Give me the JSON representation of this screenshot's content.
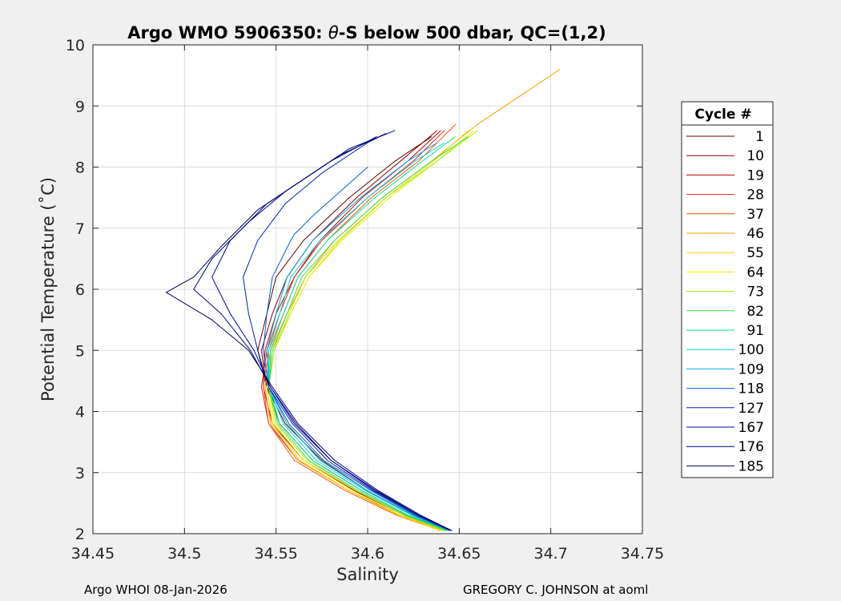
{
  "chart_data": {
    "type": "line",
    "title_prefix": "Argo WMO 5906350: ",
    "title_theta": "θ",
    "title_suffix": "-S below 500 dbar,  QC=(1,2)",
    "xlabel": "Salinity",
    "ylabel": "Potential Temperature (˚C)",
    "xlim": [
      34.45,
      34.75
    ],
    "ylim": [
      2,
      10
    ],
    "xticks": [
      "34.45",
      "34.5",
      "34.55",
      "34.6",
      "34.65",
      "34.7",
      "34.75"
    ],
    "yticks": [
      "2",
      "3",
      "4",
      "5",
      "6",
      "7",
      "8",
      "9",
      "10"
    ],
    "grid": true,
    "legend_title": "Cycle #",
    "legend_position": "right",
    "series": [
      {
        "name": "1",
        "color": "#5a0000",
        "points": [
          [
            34.645,
            2.05
          ],
          [
            34.625,
            2.3
          ],
          [
            34.6,
            2.7
          ],
          [
            34.575,
            3.2
          ],
          [
            34.555,
            3.8
          ],
          [
            34.545,
            4.4
          ],
          [
            34.54,
            5.0
          ],
          [
            34.545,
            5.6
          ],
          [
            34.55,
            6.2
          ],
          [
            34.565,
            6.8
          ],
          [
            34.59,
            7.5
          ],
          [
            34.615,
            8.1
          ],
          [
            34.635,
            8.5
          ]
        ]
      },
      {
        "name": "10",
        "color": "#8a0000",
        "points": [
          [
            34.645,
            2.05
          ],
          [
            34.622,
            2.3
          ],
          [
            34.597,
            2.7
          ],
          [
            34.57,
            3.2
          ],
          [
            34.552,
            3.8
          ],
          [
            34.545,
            4.4
          ],
          [
            34.542,
            5.0
          ],
          [
            34.548,
            5.6
          ],
          [
            34.556,
            6.2
          ],
          [
            34.57,
            6.8
          ],
          [
            34.594,
            7.5
          ],
          [
            34.618,
            8.1
          ],
          [
            34.638,
            8.6
          ]
        ]
      },
      {
        "name": "19",
        "color": "#c00000",
        "points": [
          [
            34.643,
            2.05
          ],
          [
            34.62,
            2.3
          ],
          [
            34.593,
            2.7
          ],
          [
            34.565,
            3.2
          ],
          [
            34.548,
            3.8
          ],
          [
            34.543,
            4.4
          ],
          [
            34.544,
            5.0
          ],
          [
            34.55,
            5.6
          ],
          [
            34.56,
            6.2
          ],
          [
            34.574,
            6.8
          ],
          [
            34.597,
            7.5
          ],
          [
            34.622,
            8.1
          ],
          [
            34.64,
            8.6
          ]
        ]
      },
      {
        "name": "28",
        "color": "#e02020",
        "points": [
          [
            34.642,
            2.05
          ],
          [
            34.618,
            2.3
          ],
          [
            34.59,
            2.7
          ],
          [
            34.562,
            3.2
          ],
          [
            34.546,
            3.8
          ],
          [
            34.542,
            4.4
          ],
          [
            34.545,
            5.0
          ],
          [
            34.552,
            5.6
          ],
          [
            34.56,
            6.2
          ],
          [
            34.575,
            6.8
          ],
          [
            34.6,
            7.5
          ],
          [
            34.625,
            8.1
          ],
          [
            34.642,
            8.6
          ]
        ]
      },
      {
        "name": "37",
        "color": "#ff5500",
        "points": [
          [
            34.64,
            2.05
          ],
          [
            34.616,
            2.3
          ],
          [
            34.588,
            2.7
          ],
          [
            34.56,
            3.2
          ],
          [
            34.546,
            3.8
          ],
          [
            34.543,
            4.4
          ],
          [
            34.546,
            5.0
          ],
          [
            34.554,
            5.6
          ],
          [
            34.562,
            6.2
          ],
          [
            34.578,
            6.8
          ],
          [
            34.602,
            7.5
          ],
          [
            34.628,
            8.1
          ],
          [
            34.648,
            8.7
          ]
        ]
      },
      {
        "name": "46",
        "color": "#ff9900",
        "points": [
          [
            34.64,
            2.05
          ],
          [
            34.617,
            2.3
          ],
          [
            34.59,
            2.7
          ],
          [
            34.562,
            3.2
          ],
          [
            34.547,
            3.8
          ],
          [
            34.544,
            4.4
          ],
          [
            34.547,
            5.0
          ],
          [
            34.556,
            5.6
          ],
          [
            34.566,
            6.2
          ],
          [
            34.582,
            6.8
          ],
          [
            34.608,
            7.5
          ],
          [
            34.635,
            8.1
          ],
          [
            34.66,
            8.7
          ],
          [
            34.675,
            9.0
          ],
          [
            34.69,
            9.3
          ],
          [
            34.705,
            9.6
          ]
        ]
      },
      {
        "name": "55",
        "color": "#ffd000",
        "points": [
          [
            34.64,
            2.05
          ],
          [
            34.617,
            2.3
          ],
          [
            34.59,
            2.7
          ],
          [
            34.563,
            3.2
          ],
          [
            34.548,
            3.8
          ],
          [
            34.545,
            4.4
          ],
          [
            34.548,
            5.0
          ],
          [
            34.558,
            5.6
          ],
          [
            34.568,
            6.2
          ],
          [
            34.585,
            6.8
          ],
          [
            34.61,
            7.5
          ],
          [
            34.636,
            8.1
          ],
          [
            34.655,
            8.6
          ]
        ]
      },
      {
        "name": "64",
        "color": "#e8f000",
        "points": [
          [
            34.641,
            2.05
          ],
          [
            34.618,
            2.3
          ],
          [
            34.592,
            2.7
          ],
          [
            34.565,
            3.2
          ],
          [
            34.549,
            3.8
          ],
          [
            34.546,
            4.4
          ],
          [
            34.549,
            5.0
          ],
          [
            34.558,
            5.6
          ],
          [
            34.568,
            6.2
          ],
          [
            34.586,
            6.8
          ],
          [
            34.612,
            7.5
          ],
          [
            34.638,
            8.1
          ],
          [
            34.658,
            8.6
          ]
        ]
      },
      {
        "name": "73",
        "color": "#a0f000",
        "points": [
          [
            34.642,
            2.05
          ],
          [
            34.62,
            2.3
          ],
          [
            34.594,
            2.7
          ],
          [
            34.567,
            3.2
          ],
          [
            34.55,
            3.8
          ],
          [
            34.546,
            4.4
          ],
          [
            34.549,
            5.0
          ],
          [
            34.557,
            5.6
          ],
          [
            34.566,
            6.2
          ],
          [
            34.584,
            6.8
          ],
          [
            34.61,
            7.5
          ],
          [
            34.638,
            8.1
          ],
          [
            34.66,
            8.6
          ]
        ]
      },
      {
        "name": "82",
        "color": "#40e040",
        "points": [
          [
            34.643,
            2.05
          ],
          [
            34.621,
            2.3
          ],
          [
            34.595,
            2.7
          ],
          [
            34.568,
            3.2
          ],
          [
            34.551,
            3.8
          ],
          [
            34.546,
            4.4
          ],
          [
            34.548,
            5.0
          ],
          [
            34.556,
            5.6
          ],
          [
            34.564,
            6.2
          ],
          [
            34.582,
            6.8
          ],
          [
            34.608,
            7.5
          ],
          [
            34.635,
            8.1
          ],
          [
            34.655,
            8.5
          ]
        ]
      },
      {
        "name": "91",
        "color": "#00e0a0",
        "points": [
          [
            34.644,
            2.05
          ],
          [
            34.622,
            2.3
          ],
          [
            34.597,
            2.7
          ],
          [
            34.57,
            3.2
          ],
          [
            34.552,
            3.8
          ],
          [
            34.546,
            4.4
          ],
          [
            34.547,
            5.0
          ],
          [
            34.554,
            5.6
          ],
          [
            34.562,
            6.2
          ],
          [
            34.578,
            6.8
          ],
          [
            34.604,
            7.5
          ],
          [
            34.63,
            8.1
          ],
          [
            34.648,
            8.5
          ]
        ]
      },
      {
        "name": "100",
        "color": "#00d8d8",
        "points": [
          [
            34.645,
            2.05
          ],
          [
            34.624,
            2.3
          ],
          [
            34.599,
            2.7
          ],
          [
            34.572,
            3.2
          ],
          [
            34.554,
            3.8
          ],
          [
            34.546,
            4.4
          ],
          [
            34.546,
            5.0
          ],
          [
            34.552,
            5.6
          ],
          [
            34.558,
            6.2
          ],
          [
            34.574,
            6.8
          ],
          [
            34.6,
            7.5
          ],
          [
            34.626,
            8.1
          ],
          [
            34.642,
            8.4
          ]
        ]
      },
      {
        "name": "109",
        "color": "#00a8e0",
        "points": [
          [
            34.645,
            2.05
          ],
          [
            34.625,
            2.3
          ],
          [
            34.6,
            2.7
          ],
          [
            34.574,
            3.2
          ],
          [
            34.556,
            3.8
          ],
          [
            34.546,
            4.4
          ],
          [
            34.545,
            5.0
          ],
          [
            34.55,
            5.6
          ],
          [
            34.556,
            6.2
          ],
          [
            34.57,
            6.8
          ],
          [
            34.596,
            7.5
          ],
          [
            34.622,
            8.1
          ],
          [
            34.638,
            8.4
          ]
        ]
      },
      {
        "name": "118",
        "color": "#0060d0",
        "points": [
          [
            34.645,
            2.05
          ],
          [
            34.626,
            2.3
          ],
          [
            34.602,
            2.7
          ],
          [
            34.576,
            3.2
          ],
          [
            34.557,
            3.8
          ],
          [
            34.546,
            4.4
          ],
          [
            34.543,
            5.0
          ],
          [
            34.545,
            5.6
          ],
          [
            34.548,
            6.2
          ],
          [
            34.558,
            6.8
          ],
          [
            34.56,
            6.9
          ],
          [
            34.57,
            7.2
          ],
          [
            34.585,
            7.6
          ],
          [
            34.6,
            8.0
          ]
        ]
      },
      {
        "name": "127",
        "color": "#0020b0",
        "points": [
          [
            34.645,
            2.05
          ],
          [
            34.627,
            2.3
          ],
          [
            34.603,
            2.7
          ],
          [
            34.578,
            3.2
          ],
          [
            34.559,
            3.8
          ],
          [
            34.546,
            4.4
          ],
          [
            34.54,
            5.0
          ],
          [
            34.535,
            5.6
          ],
          [
            34.532,
            6.2
          ],
          [
            34.54,
            6.8
          ],
          [
            34.555,
            7.4
          ],
          [
            34.575,
            7.9
          ],
          [
            34.6,
            8.4
          ],
          [
            34.61,
            8.55
          ]
        ]
      },
      {
        "name": "167",
        "color": "#0000a0",
        "points": [
          [
            34.646,
            2.05
          ],
          [
            34.628,
            2.3
          ],
          [
            34.605,
            2.7
          ],
          [
            34.58,
            3.2
          ],
          [
            34.56,
            3.8
          ],
          [
            34.547,
            4.4
          ],
          [
            34.538,
            5.0
          ],
          [
            34.525,
            5.6
          ],
          [
            34.515,
            6.2
          ],
          [
            34.525,
            6.8
          ],
          [
            34.545,
            7.4
          ],
          [
            34.565,
            7.8
          ],
          [
            34.59,
            8.3
          ],
          [
            34.615,
            8.6
          ]
        ]
      },
      {
        "name": "176",
        "color": "#000080",
        "points": [
          [
            34.646,
            2.05
          ],
          [
            34.628,
            2.3
          ],
          [
            34.604,
            2.7
          ],
          [
            34.58,
            3.2
          ],
          [
            34.561,
            3.8
          ],
          [
            34.547,
            4.4
          ],
          [
            34.536,
            5.0
          ],
          [
            34.52,
            5.6
          ],
          [
            34.505,
            6.0
          ],
          [
            34.515,
            6.5
          ],
          [
            34.535,
            7.1
          ],
          [
            34.555,
            7.6
          ],
          [
            34.58,
            8.1
          ],
          [
            34.605,
            8.5
          ]
        ]
      },
      {
        "name": "185",
        "color": "#000060",
        "points": [
          [
            34.646,
            2.05
          ],
          [
            34.629,
            2.3
          ],
          [
            34.606,
            2.7
          ],
          [
            34.582,
            3.2
          ],
          [
            34.562,
            3.8
          ],
          [
            34.548,
            4.4
          ],
          [
            34.535,
            5.0
          ],
          [
            34.515,
            5.5
          ],
          [
            34.49,
            5.95
          ],
          [
            34.505,
            6.2
          ],
          [
            34.52,
            6.7
          ],
          [
            34.54,
            7.3
          ],
          [
            34.56,
            7.7
          ],
          [
            34.585,
            8.2
          ],
          [
            34.61,
            8.55
          ]
        ]
      }
    ]
  },
  "footer": {
    "left": "Argo WHOI 08-Jan-2026",
    "right": "GREGORY C. JOHNSON at aoml"
  }
}
